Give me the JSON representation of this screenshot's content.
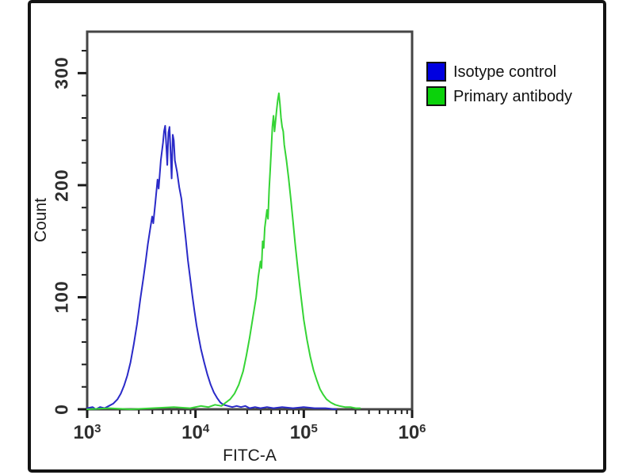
{
  "figure": {
    "kind": "flow-cytometry-overlay-histogram",
    "border_color": "#131313",
    "spine_color": "#454545",
    "tick_color": "#1a1a1a",
    "text_color": "#1c1c1c"
  },
  "legend": {
    "items": [
      {
        "label": "Isotype control",
        "swatch_color": "#0000e0"
      },
      {
        "label": "Primary antibody",
        "swatch_color": "#0bd20b"
      }
    ]
  },
  "chart_data": {
    "type": "line",
    "title": "",
    "xlabel": "FITC-A",
    "ylabel": "Count",
    "x_scale": "log10",
    "x_decade_exponents": [
      3,
      4,
      5,
      6
    ],
    "x_tick_base": "10",
    "x_minor_multiples": [
      2,
      3,
      4,
      5,
      6,
      7,
      8,
      9
    ],
    "xlim_log": [
      3,
      6
    ],
    "ylim": [
      0,
      337
    ],
    "y_major_ticks": [
      0,
      100,
      200,
      300
    ],
    "y_minor_step": 20,
    "grid": false,
    "legend_position": "outside-top-right",
    "series": [
      {
        "name": "Isotype control",
        "stroke_color": "#2a2ac8",
        "legend_color": "#0000e0",
        "peak": {
          "x_log": 3.72,
          "count": 253
        },
        "points": [
          [
            3.0,
            1
          ],
          [
            3.05,
            2
          ],
          [
            3.08,
            0
          ],
          [
            3.12,
            2
          ],
          [
            3.16,
            1
          ],
          [
            3.2,
            3
          ],
          [
            3.24,
            5
          ],
          [
            3.28,
            9
          ],
          [
            3.31,
            14
          ],
          [
            3.34,
            21
          ],
          [
            3.37,
            30
          ],
          [
            3.4,
            42
          ],
          [
            3.43,
            58
          ],
          [
            3.46,
            76
          ],
          [
            3.49,
            98
          ],
          [
            3.52,
            118
          ],
          [
            3.54,
            132
          ],
          [
            3.56,
            147
          ],
          [
            3.58,
            160
          ],
          [
            3.6,
            172
          ],
          [
            3.61,
            166
          ],
          [
            3.63,
            185
          ],
          [
            3.65,
            205
          ],
          [
            3.66,
            197
          ],
          [
            3.68,
            222
          ],
          [
            3.7,
            238
          ],
          [
            3.71,
            248
          ],
          [
            3.72,
            253
          ],
          [
            3.73,
            236
          ],
          [
            3.74,
            218
          ],
          [
            3.75,
            247
          ],
          [
            3.76,
            252
          ],
          [
            3.77,
            230
          ],
          [
            3.78,
            206
          ],
          [
            3.79,
            245
          ],
          [
            3.8,
            240
          ],
          [
            3.81,
            222
          ],
          [
            3.83,
            212
          ],
          [
            3.85,
            198
          ],
          [
            3.87,
            188
          ],
          [
            3.89,
            170
          ],
          [
            3.91,
            152
          ],
          [
            3.93,
            133
          ],
          [
            3.95,
            118
          ],
          [
            3.97,
            102
          ],
          [
            3.99,
            88
          ],
          [
            4.01,
            75
          ],
          [
            4.03,
            64
          ],
          [
            4.05,
            54
          ],
          [
            4.08,
            42
          ],
          [
            4.11,
            31
          ],
          [
            4.14,
            22
          ],
          [
            4.17,
            15
          ],
          [
            4.2,
            10
          ],
          [
            4.23,
            6
          ],
          [
            4.26,
            4
          ],
          [
            4.3,
            3
          ],
          [
            4.34,
            2
          ],
          [
            4.38,
            3
          ],
          [
            4.42,
            2
          ],
          [
            4.46,
            3
          ],
          [
            4.5,
            1
          ],
          [
            4.55,
            2
          ],
          [
            4.6,
            1
          ],
          [
            4.66,
            2
          ],
          [
            4.72,
            1
          ],
          [
            4.8,
            2
          ],
          [
            4.9,
            1
          ],
          [
            5.0,
            2
          ],
          [
            5.1,
            1
          ],
          [
            5.2,
            1
          ],
          [
            5.3,
            0
          ]
        ]
      },
      {
        "name": "Primary antibody",
        "stroke_color": "#35d435",
        "legend_color": "#0bd20b",
        "peak": {
          "x_log": 4.77,
          "count": 282
        },
        "points": [
          [
            3.0,
            0
          ],
          [
            3.2,
            1
          ],
          [
            3.4,
            0
          ],
          [
            3.6,
            1
          ],
          [
            3.8,
            2
          ],
          [
            3.95,
            1
          ],
          [
            4.05,
            3
          ],
          [
            4.12,
            2
          ],
          [
            4.18,
            4
          ],
          [
            4.24,
            3
          ],
          [
            4.28,
            6
          ],
          [
            4.32,
            9
          ],
          [
            4.36,
            14
          ],
          [
            4.4,
            22
          ],
          [
            4.44,
            34
          ],
          [
            4.47,
            48
          ],
          [
            4.5,
            64
          ],
          [
            4.53,
            82
          ],
          [
            4.56,
            100
          ],
          [
            4.58,
            118
          ],
          [
            4.6,
            132
          ],
          [
            4.61,
            126
          ],
          [
            4.62,
            150
          ],
          [
            4.63,
            144
          ],
          [
            4.64,
            162
          ],
          [
            4.66,
            178
          ],
          [
            4.67,
            170
          ],
          [
            4.68,
            196
          ],
          [
            4.69,
            214
          ],
          [
            4.7,
            232
          ],
          [
            4.71,
            252
          ],
          [
            4.72,
            262
          ],
          [
            4.73,
            248
          ],
          [
            4.74,
            258
          ],
          [
            4.75,
            268
          ],
          [
            4.76,
            276
          ],
          [
            4.77,
            282
          ],
          [
            4.78,
            272
          ],
          [
            4.79,
            260
          ],
          [
            4.8,
            252
          ],
          [
            4.81,
            248
          ],
          [
            4.82,
            236
          ],
          [
            4.84,
            222
          ],
          [
            4.86,
            206
          ],
          [
            4.88,
            188
          ],
          [
            4.9,
            168
          ],
          [
            4.92,
            148
          ],
          [
            4.94,
            130
          ],
          [
            4.96,
            112
          ],
          [
            4.98,
            96
          ],
          [
            5.0,
            80
          ],
          [
            5.03,
            62
          ],
          [
            5.06,
            47
          ],
          [
            5.09,
            35
          ],
          [
            5.12,
            26
          ],
          [
            5.15,
            18
          ],
          [
            5.18,
            13
          ],
          [
            5.21,
            9
          ],
          [
            5.25,
            6
          ],
          [
            5.29,
            4
          ],
          [
            5.33,
            3
          ],
          [
            5.38,
            2
          ],
          [
            5.43,
            2
          ],
          [
            5.48,
            1
          ],
          [
            5.52,
            1
          ]
        ]
      }
    ]
  }
}
